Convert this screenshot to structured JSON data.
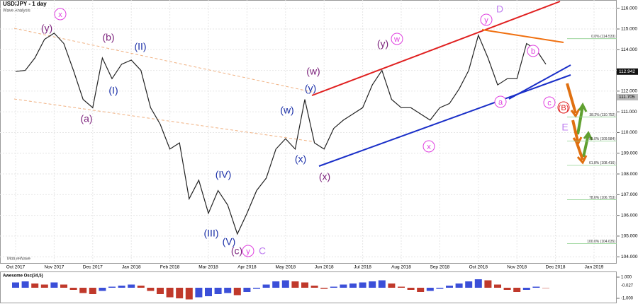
{
  "chart_data": {
    "type": "line",
    "title": "USD/JPY - 1 day",
    "subtitle": "Wave Analysis",
    "watermark": "MotiveWave",
    "price_color": "#222222",
    "grid": true,
    "categories": [
      "Oct 2017",
      null,
      null,
      null,
      "Nov 2017",
      null,
      null,
      null,
      "Dec 2017",
      null,
      null,
      null,
      "Jan 2018",
      null,
      null,
      null,
      "Feb 2018",
      null,
      null,
      null,
      "Mar 2018",
      null,
      null,
      null,
      "Apr 2018",
      null,
      null,
      null,
      "May 2018",
      null,
      null,
      null,
      "Jun 2018",
      null,
      null,
      null,
      "Jul 2018",
      null,
      null,
      null,
      "Aug 2018",
      null,
      null,
      null,
      "Sep 2018",
      null,
      null,
      null,
      "Oct 2018",
      null,
      null,
      null,
      "Nov 2018",
      null,
      null,
      null,
      "Dec 2018",
      null,
      null,
      null,
      "Jan 2019"
    ],
    "values": [
      112.95,
      113.0,
      113.6,
      114.5,
      114.8,
      114.3,
      113.0,
      111.6,
      111.2,
      113.6,
      112.6,
      113.3,
      113.5,
      113.0,
      111.2,
      110.4,
      109.2,
      109.5,
      106.8,
      107.7,
      106.1,
      107.2,
      106.5,
      105.1,
      106.1,
      107.2,
      107.8,
      109.2,
      109.7,
      109.2,
      111.6,
      109.5,
      109.2,
      110.2,
      110.6,
      110.9,
      111.2,
      112.3,
      113.0,
      111.6,
      111.2,
      111.2,
      110.9,
      110.6,
      111.2,
      111.4,
      112.1,
      113.0,
      114.7,
      113.6,
      112.3,
      112.6,
      112.6,
      114.3,
      114.0,
      113.3,
      null,
      null,
      null,
      null,
      null
    ],
    "ylim": [
      103.7,
      116.4
    ],
    "yticks": [
      {
        "value": 104,
        "label": "104.000"
      },
      {
        "value": 105,
        "label": "105.000"
      },
      {
        "value": 106,
        "label": "106.000"
      },
      {
        "value": 107,
        "label": "107.000"
      },
      {
        "value": 108,
        "label": "108.000"
      },
      {
        "value": 109,
        "label": "109.000"
      },
      {
        "value": 110,
        "label": "110.000"
      },
      {
        "value": 111,
        "label": "111.000"
      },
      {
        "value": 112,
        "label": "112.000"
      },
      {
        "value": 113,
        "label": "113.000"
      },
      {
        "value": 114,
        "label": "114.000"
      },
      {
        "value": 115,
        "label": "115.000"
      },
      {
        "value": 116,
        "label": "116.000"
      }
    ],
    "price_markers": [
      {
        "value": 112.942,
        "label": "112.942",
        "color": "#111111"
      },
      {
        "value": 111.705,
        "label": "111.705",
        "color": "#bbbbbb"
      }
    ],
    "fib_levels": [
      {
        "value": 114.533,
        "label": "0.0% (114.533)"
      },
      {
        "value": 110.752,
        "label": "38.2% (110.752)"
      },
      {
        "value": 109.584,
        "label": "50.0% (109.584)"
      },
      {
        "value": 108.416,
        "label": "61.8% (108.416)"
      },
      {
        "value": 106.753,
        "label": "78.6% (106.753)"
      },
      {
        "value": 104.635,
        "label": "100.0% (104.635)"
      }
    ],
    "wave_labels": [
      {
        "text": "x",
        "color": "#e040e0",
        "circle": true
      },
      {
        "text": "(y)",
        "color": "#7a1f7a"
      },
      {
        "text": "(b)",
        "color": "#7a1f7a"
      },
      {
        "text": "(a)",
        "color": "#7a1f7a"
      },
      {
        "text": "(II)",
        "color": "#1a2fa8"
      },
      {
        "text": "(I)",
        "color": "#1a2fa8"
      },
      {
        "text": "(IV)",
        "color": "#1a2fa8"
      },
      {
        "text": "(III)",
        "color": "#1a2fa8"
      },
      {
        "text": "(V)",
        "color": "#1a2fa8"
      },
      {
        "text": "(c)",
        "color": "#7a1f7a"
      },
      {
        "text": "y",
        "color": "#e040e0",
        "circle": true
      },
      {
        "text": "C",
        "color": "#c080f0"
      },
      {
        "text": "(w)",
        "color": "#1a2fa8"
      },
      {
        "text": "(x)",
        "color": "#1a2fa8"
      },
      {
        "text": "(y)",
        "color": "#1a2fa8"
      },
      {
        "text": "(w)",
        "color": "#7a1f7a"
      },
      {
        "text": "(x)",
        "color": "#7a1f7a"
      },
      {
        "text": "(y)",
        "color": "#7a1f7a"
      },
      {
        "text": "w",
        "color": "#e040e0",
        "circle": true
      },
      {
        "text": "x",
        "color": "#e040e0",
        "circle": true
      },
      {
        "text": "y",
        "color": "#e040e0",
        "circle": true
      },
      {
        "text": "D",
        "color": "#c080f0"
      },
      {
        "text": "b",
        "color": "#e040e0",
        "circle": true
      },
      {
        "text": "a",
        "color": "#e040e0",
        "circle": true
      },
      {
        "text": "c",
        "color": "#e040e0",
        "circle": true
      },
      {
        "text": "(B)",
        "color": "#e02020",
        "circle": true
      },
      {
        "text": "E",
        "color": "#c080f0"
      }
    ],
    "oscillator": {
      "name": "Awesome Osc(34,5)",
      "up_color": "#3b4fd8",
      "down_color": "#c0392b",
      "current": "-0.027",
      "values": [
        0.5,
        0.6,
        0.4,
        0.3,
        0.5,
        0.3,
        -0.2,
        -0.5,
        -0.6,
        -0.3,
        0.1,
        0.2,
        0.3,
        0.2,
        -0.3,
        -0.6,
        -0.9,
        -1.0,
        -1.1,
        -0.9,
        -0.8,
        -0.6,
        -0.5,
        -0.7,
        -0.4,
        -0.1,
        0.3,
        0.6,
        0.7,
        0.6,
        0.5,
        0.2,
        -0.1,
        0.1,
        0.3,
        0.4,
        0.5,
        0.6,
        0.7,
        0.4,
        0.1,
        -0.2,
        -0.4,
        -0.3,
        -0.1,
        0.2,
        0.4,
        0.6,
        0.8,
        0.7,
        0.3,
        -0.2,
        -0.4,
        -0.2,
        0.1,
        0.0
      ],
      "ylim": [
        -1.4,
        1.4
      ],
      "yticks": [
        {
          "value": 1,
          "label": "1.000"
        },
        {
          "value": -1,
          "label": "-1.000"
        }
      ]
    }
  }
}
